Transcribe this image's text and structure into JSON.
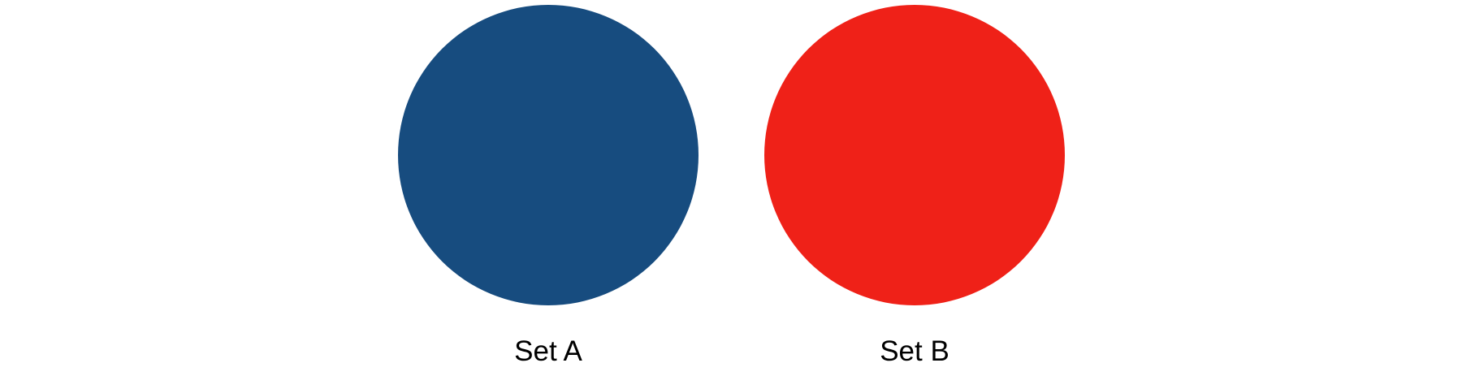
{
  "sets": [
    {
      "label": "Set A",
      "color": "#174c7f"
    },
    {
      "label": "Set B",
      "color": "#ef2118"
    }
  ]
}
